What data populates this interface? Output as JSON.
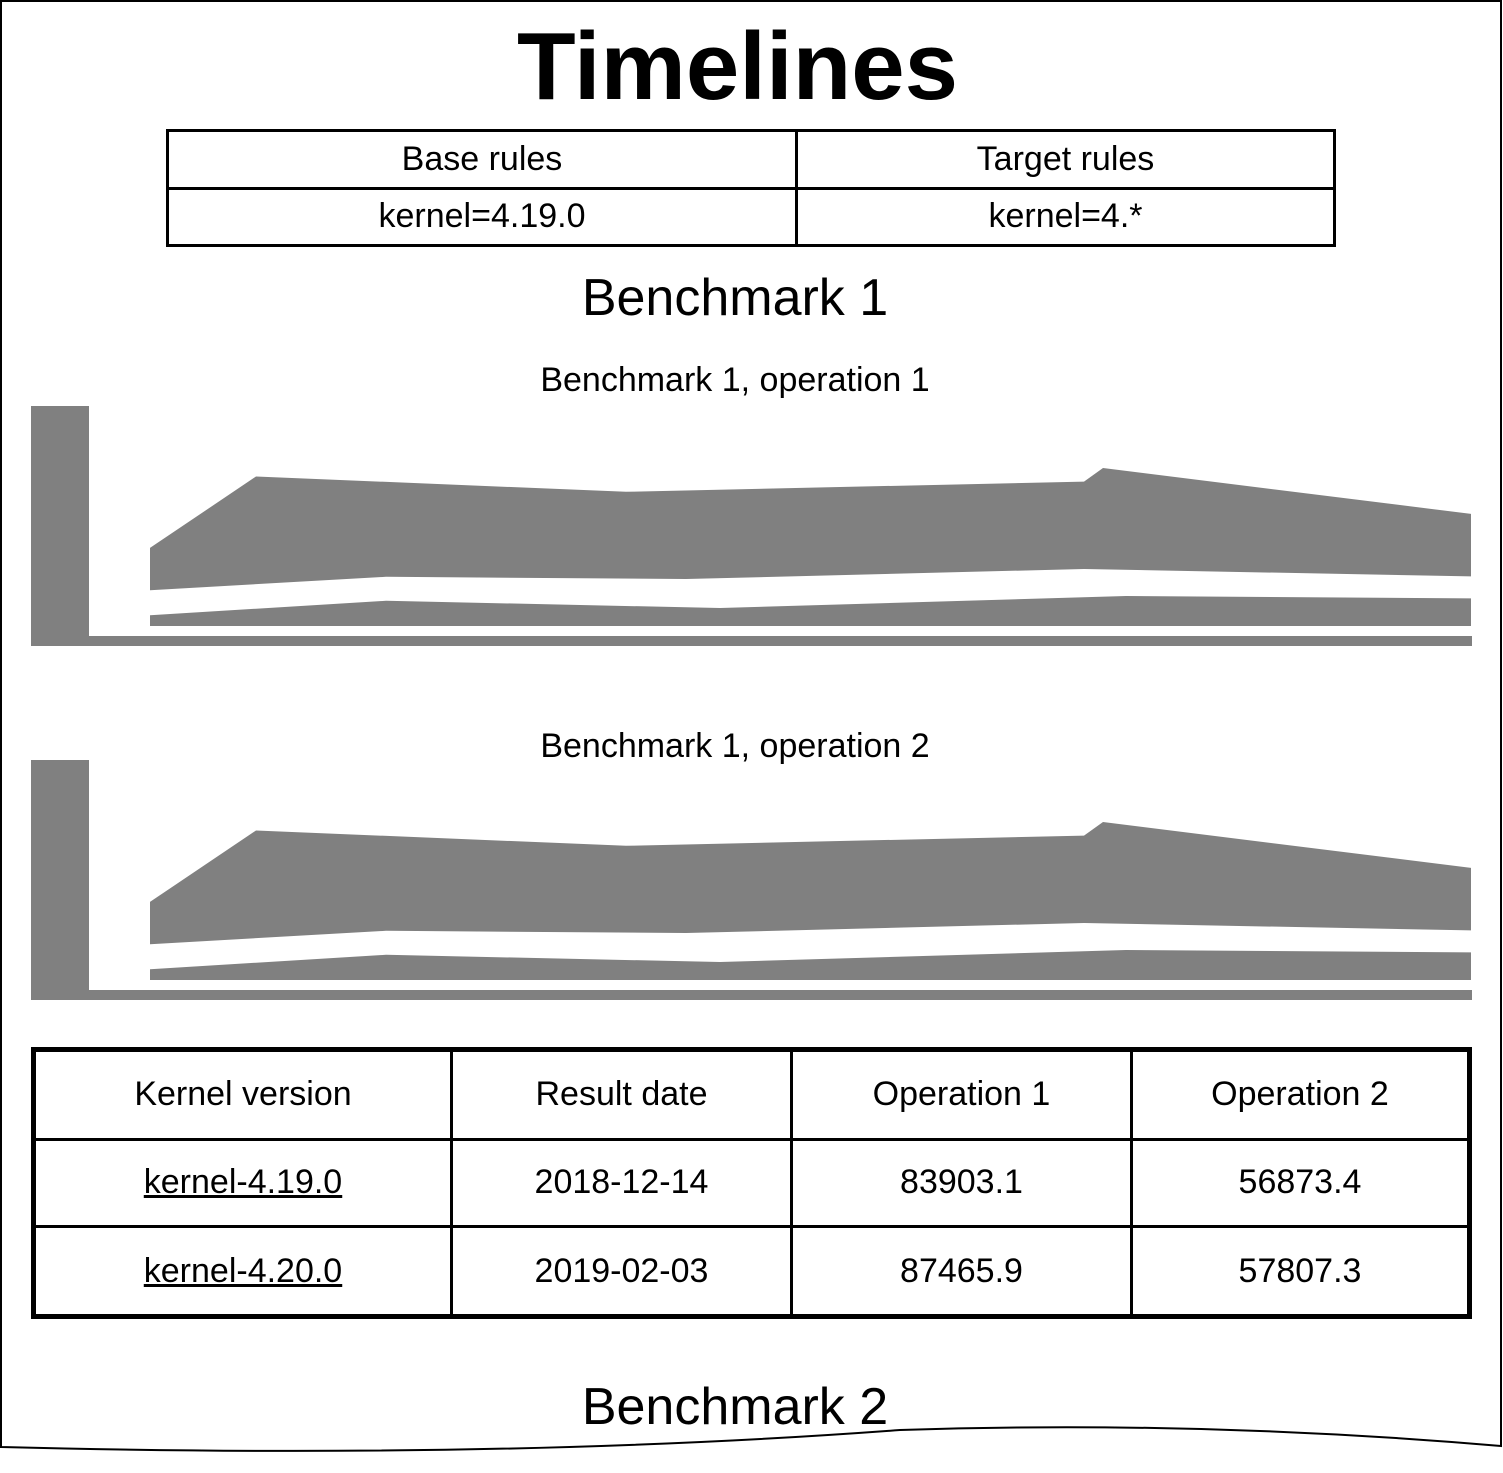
{
  "page": {
    "title": "Timelines"
  },
  "rules": {
    "headers": [
      "Base rules",
      "Target rules"
    ],
    "values": [
      "kernel=4.19.0",
      "kernel=4.*"
    ]
  },
  "benchmark1": {
    "title": "Benchmark 1"
  },
  "benchmark2": {
    "title": "Benchmark 2"
  },
  "chart_data": [
    {
      "type": "area",
      "title": "Benchmark 1, operation 1",
      "xlabel": "",
      "ylabel": "",
      "grid": false,
      "series": [
        {
          "values": [
            0.09,
            0.21,
            0.15,
            0.07,
            0.25,
            0.23
          ]
        },
        {
          "values": [
            0.13,
            0.55,
            0.46,
            0.52,
            0.6,
            0.33
          ]
        }
      ]
    },
    {
      "type": "area",
      "title": "Benchmark 1, operation 2",
      "xlabel": "",
      "ylabel": "",
      "grid": false,
      "series": [
        {
          "values": [
            0.09,
            0.21,
            0.15,
            0.07,
            0.25,
            0.23
          ]
        },
        {
          "values": [
            0.13,
            0.55,
            0.46,
            0.52,
            0.6,
            0.33
          ]
        }
      ]
    }
  ],
  "results": {
    "headers": [
      "Kernel version",
      "Result date",
      "Operation 1",
      "Operation 2"
    ],
    "rows": [
      [
        "kernel-4.19.0",
        "2018-12-14",
        "83903.1",
        "56873.4"
      ],
      [
        "kernel-4.20.0",
        "2019-02-03",
        "87465.9",
        "57807.3"
      ]
    ]
  },
  "colors": {
    "area_fill": "#808080",
    "background": "#ffffff"
  }
}
